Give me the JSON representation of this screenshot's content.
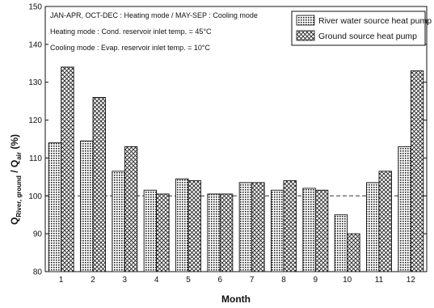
{
  "chart_data": {
    "type": "bar",
    "categories": [
      "1",
      "2",
      "3",
      "4",
      "5",
      "6",
      "7",
      "8",
      "9",
      "10",
      "11",
      "12"
    ],
    "series": [
      {
        "name": "River water source heat pump",
        "values": [
          114,
          114.5,
          106.5,
          101.5,
          104.5,
          100.5,
          103.5,
          101.5,
          102,
          95,
          103.5,
          113
        ],
        "pattern": "dots"
      },
      {
        "name": "Ground source heat pump",
        "values": [
          134,
          126,
          113,
          100.5,
          104,
          100.5,
          103.5,
          104,
          101.5,
          90,
          106.5,
          133
        ],
        "pattern": "cross-hatch"
      }
    ],
    "xlabel": "Month",
    "ylabel": "Q_river, ground / Q_air (%)",
    "ylabel_parts": {
      "q1": "Q",
      "sub1": "River, ground",
      "slash": " / ",
      "q2": "Q",
      "sub2": "air",
      "unit": " (%)"
    },
    "ylim": [
      80,
      150
    ],
    "yticks": [
      80,
      90,
      100,
      110,
      120,
      130,
      140,
      150
    ],
    "reference_line": 100,
    "annotations": [
      "JAN-APR, OCT-DEC : Heating mode / MAY-SEP : Cooling mode",
      "Heating mode : Cond. reservoir inlet temp. = 45°C",
      "Cooling mode : Evap. reservoir inlet temp. = 10°C"
    ],
    "legend_position": "top-right",
    "grid": false
  }
}
